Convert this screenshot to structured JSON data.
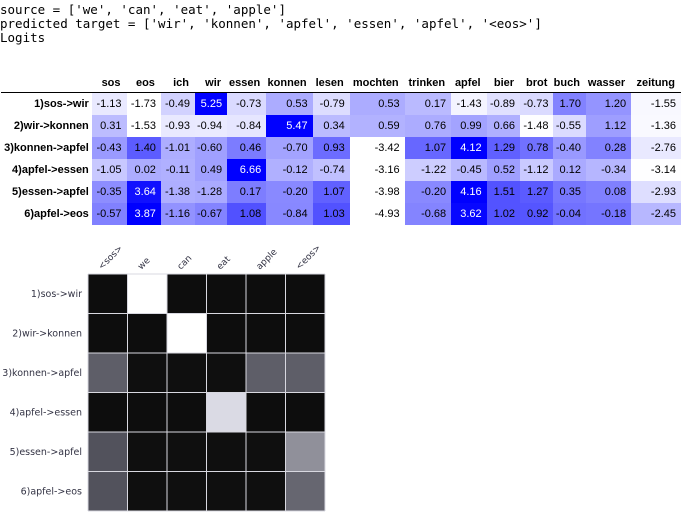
{
  "code_output": {
    "line1": "source = ['we', 'can', 'eat', 'apple']",
    "line2": "predicted target = ['wir', 'konnen', 'apfel', 'essen', 'apfel', '<eos>']",
    "line3": "Logits"
  },
  "logits_table": {
    "columns": [
      "sos",
      "eos",
      "ich",
      "wir",
      "essen",
      "konnen",
      "lesen",
      "mochten",
      "trinken",
      "apfel",
      "bier",
      "brot",
      "buch",
      "wasser",
      "zeitung"
    ],
    "rows": [
      {
        "label": "1)sos->wir",
        "values": [
          "-1.13",
          "-1.73",
          "-0.49",
          "5.25",
          "-0.73",
          "0.53",
          "-0.79",
          "0.53",
          "0.17",
          "-1.43",
          "-0.89",
          "-0.73",
          "1.70",
          "1.20",
          "-1.55"
        ]
      },
      {
        "label": "2)wir->konnen",
        "values": [
          "0.31",
          "-1.53",
          "-0.93",
          "-0.94",
          "-0.84",
          "5.47",
          "0.34",
          "0.59",
          "0.76",
          "0.99",
          "0.66",
          "-1.48",
          "-0.55",
          "1.12",
          "-1.36"
        ]
      },
      {
        "label": "3)konnen->apfel",
        "values": [
          "-0.43",
          "1.40",
          "-1.01",
          "-0.60",
          "0.46",
          "-0.70",
          "0.93",
          "-3.42",
          "1.07",
          "4.12",
          "1.29",
          "0.78",
          "-0.40",
          "0.28",
          "-2.76"
        ]
      },
      {
        "label": "4)apfel->essen",
        "values": [
          "-1.05",
          "0.02",
          "-0.11",
          "0.49",
          "6.66",
          "-0.12",
          "-0.74",
          "-3.16",
          "-1.22",
          "-0.45",
          "0.52",
          "-1.12",
          "0.12",
          "-0.34",
          "-3.14"
        ]
      },
      {
        "label": "5)essen->apfel",
        "values": [
          "-0.35",
          "3.64",
          "-1.38",
          "-1.28",
          "0.17",
          "-0.20",
          "1.07",
          "-3.98",
          "-0.20",
          "4.16",
          "1.51",
          "1.27",
          "0.35",
          "0.08",
          "-2.93"
        ]
      },
      {
        "label": "6)apfel->eos",
        "values": [
          "-0.57",
          "3.87",
          "-1.16",
          "-0.67",
          "1.08",
          "-0.84",
          "1.03",
          "-4.93",
          "-0.68",
          "3.62",
          "1.02",
          "0.92",
          "-0.04",
          "-0.18",
          "-2.45"
        ]
      }
    ]
  },
  "chart_data": {
    "type": "heatmap",
    "x_tick_labels": [
      "<sos>",
      "we",
      "can",
      "eat",
      "apple",
      "<eos>"
    ],
    "y_tick_labels": [
      "1)sos->wir",
      "2)wir->konnen",
      "3)konnen->apfel",
      "4)apfel->essen",
      "5)essen->apfel",
      "6)apfel->eos"
    ],
    "values": [
      [
        0.02,
        1.0,
        0.02,
        0.02,
        0.02,
        0.02
      ],
      [
        0.02,
        0.02,
        1.0,
        0.02,
        0.02,
        0.02
      ],
      [
        0.35,
        0.03,
        0.03,
        0.03,
        0.35,
        0.35
      ],
      [
        0.02,
        0.02,
        0.02,
        0.85,
        0.02,
        0.02
      ],
      [
        0.3,
        0.03,
        0.03,
        0.03,
        0.03,
        0.55
      ],
      [
        0.3,
        0.03,
        0.03,
        0.03,
        0.03,
        0.38
      ]
    ],
    "grid": true
  }
}
